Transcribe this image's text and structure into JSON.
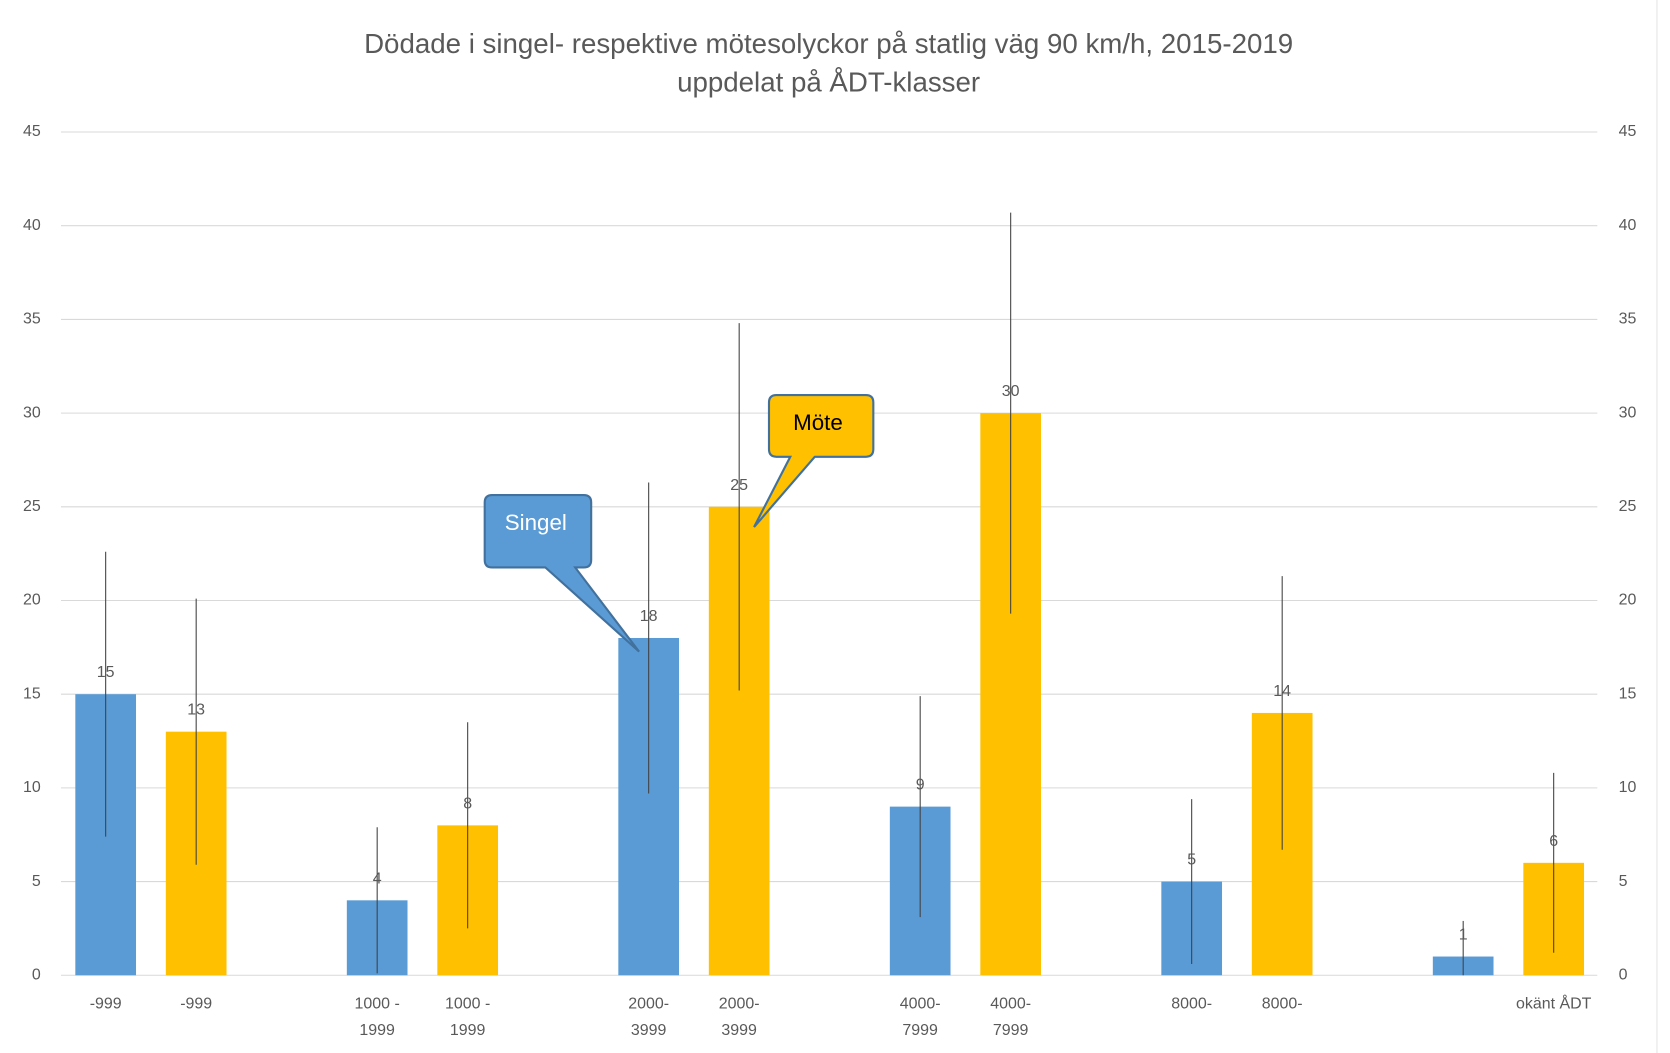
{
  "chart_data": {
    "type": "bar",
    "title": "Dödade i singel- respektive mötesolyckor på statlig väg 90 km/h, 2015-2019",
    "subtitle": "uppdelat på ÅDT-klasser",
    "categories": [
      "-999",
      "-999",
      "1000 -\n1999",
      "1000 -\n1999",
      "2000-\n3999",
      "2000-\n3999",
      "4000-\n7999",
      "4000-\n7999",
      "8000-",
      "8000-",
      null,
      "okänt ÅDT"
    ],
    "series": [
      {
        "name": "Singel",
        "color": "#5b9bd5",
        "values": [
          15,
          null,
          4,
          null,
          18,
          null,
          9,
          null,
          5,
          null,
          1,
          null
        ],
        "errors": [
          7.6,
          null,
          3.9,
          null,
          8.3,
          null,
          5.9,
          null,
          4.4,
          null,
          1.9,
          null
        ]
      },
      {
        "name": "Möte",
        "color": "#ffc000",
        "values": [
          null,
          13,
          null,
          8,
          null,
          25,
          null,
          30,
          null,
          14,
          null,
          6
        ],
        "errors": [
          null,
          7.1,
          null,
          5.5,
          null,
          9.8,
          null,
          10.7,
          null,
          7.3,
          null,
          4.8
        ]
      }
    ],
    "ylim": [
      0,
      45
    ],
    "yticks": [
      0,
      5,
      10,
      15,
      20,
      25,
      30,
      35,
      40,
      45
    ],
    "y2lim": [
      0,
      45
    ],
    "y2ticks": [
      0,
      5,
      10,
      15,
      20,
      25,
      30,
      35,
      40,
      45
    ],
    "grid": true
  }
}
